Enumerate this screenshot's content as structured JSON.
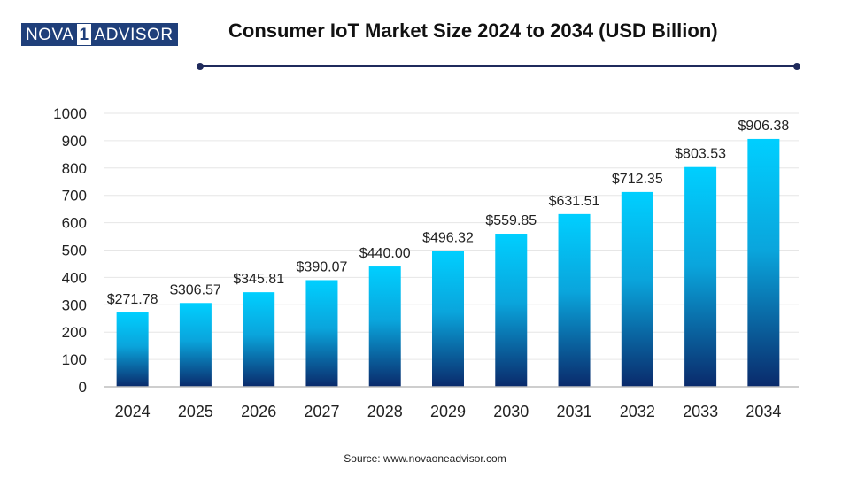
{
  "logo": {
    "part1": "NOVA",
    "part2": "1",
    "part3": "ADVISOR"
  },
  "title": "Consumer IoT Market Size 2024 to 2034 (USD Billion)",
  "source": "Source: www.novaoneadvisor.com",
  "colors": {
    "bar_top": "#00cfff",
    "bar_bottom": "#0a2a6b",
    "title_rule": "#1f2a5c",
    "logo": "#1f3f7a",
    "grid": "#e6e6e6"
  },
  "chart_data": {
    "type": "bar",
    "title": "Consumer IoT Market Size 2024 to 2034 (USD Billion)",
    "xlabel": "",
    "ylabel": "",
    "categories": [
      "2024",
      "2025",
      "2026",
      "2027",
      "2028",
      "2029",
      "2030",
      "2031",
      "2032",
      "2033",
      "2034"
    ],
    "values": [
      271.78,
      306.57,
      345.81,
      390.07,
      440.0,
      496.32,
      559.85,
      631.51,
      712.35,
      803.53,
      906.38
    ],
    "data_labels": [
      "$271.78",
      "$306.57",
      "$345.81",
      "$390.07",
      "$440.00",
      "$496.32",
      "$559.85",
      "$631.51",
      "$712.35",
      "$803.53",
      "$906.38"
    ],
    "ylim": [
      0,
      1000
    ],
    "yticks": [
      0,
      100,
      200,
      300,
      400,
      500,
      600,
      700,
      800,
      900,
      1000
    ],
    "grid": true,
    "legend": "none"
  }
}
